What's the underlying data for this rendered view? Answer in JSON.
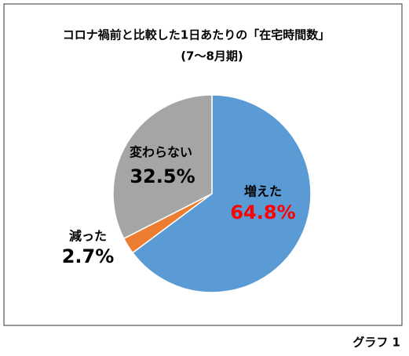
{
  "chart_data": {
    "type": "pie",
    "title": "コロナ禍前と比較した1日あたりの「在宅時間数」",
    "subtitle": "(7～8月期)",
    "categories": [
      "増えた",
      "減った",
      "変わらない"
    ],
    "values": [
      64.8,
      2.7,
      32.5
    ],
    "value_labels": [
      "64.8%",
      "2.7%",
      "32.5%"
    ],
    "colors": [
      "#5b9bd5",
      "#ed7d31",
      "#a5a5a5"
    ],
    "value_label_colors": [
      "#ff0000",
      "#000000",
      "#000000"
    ],
    "caption": "グラフ 1"
  }
}
